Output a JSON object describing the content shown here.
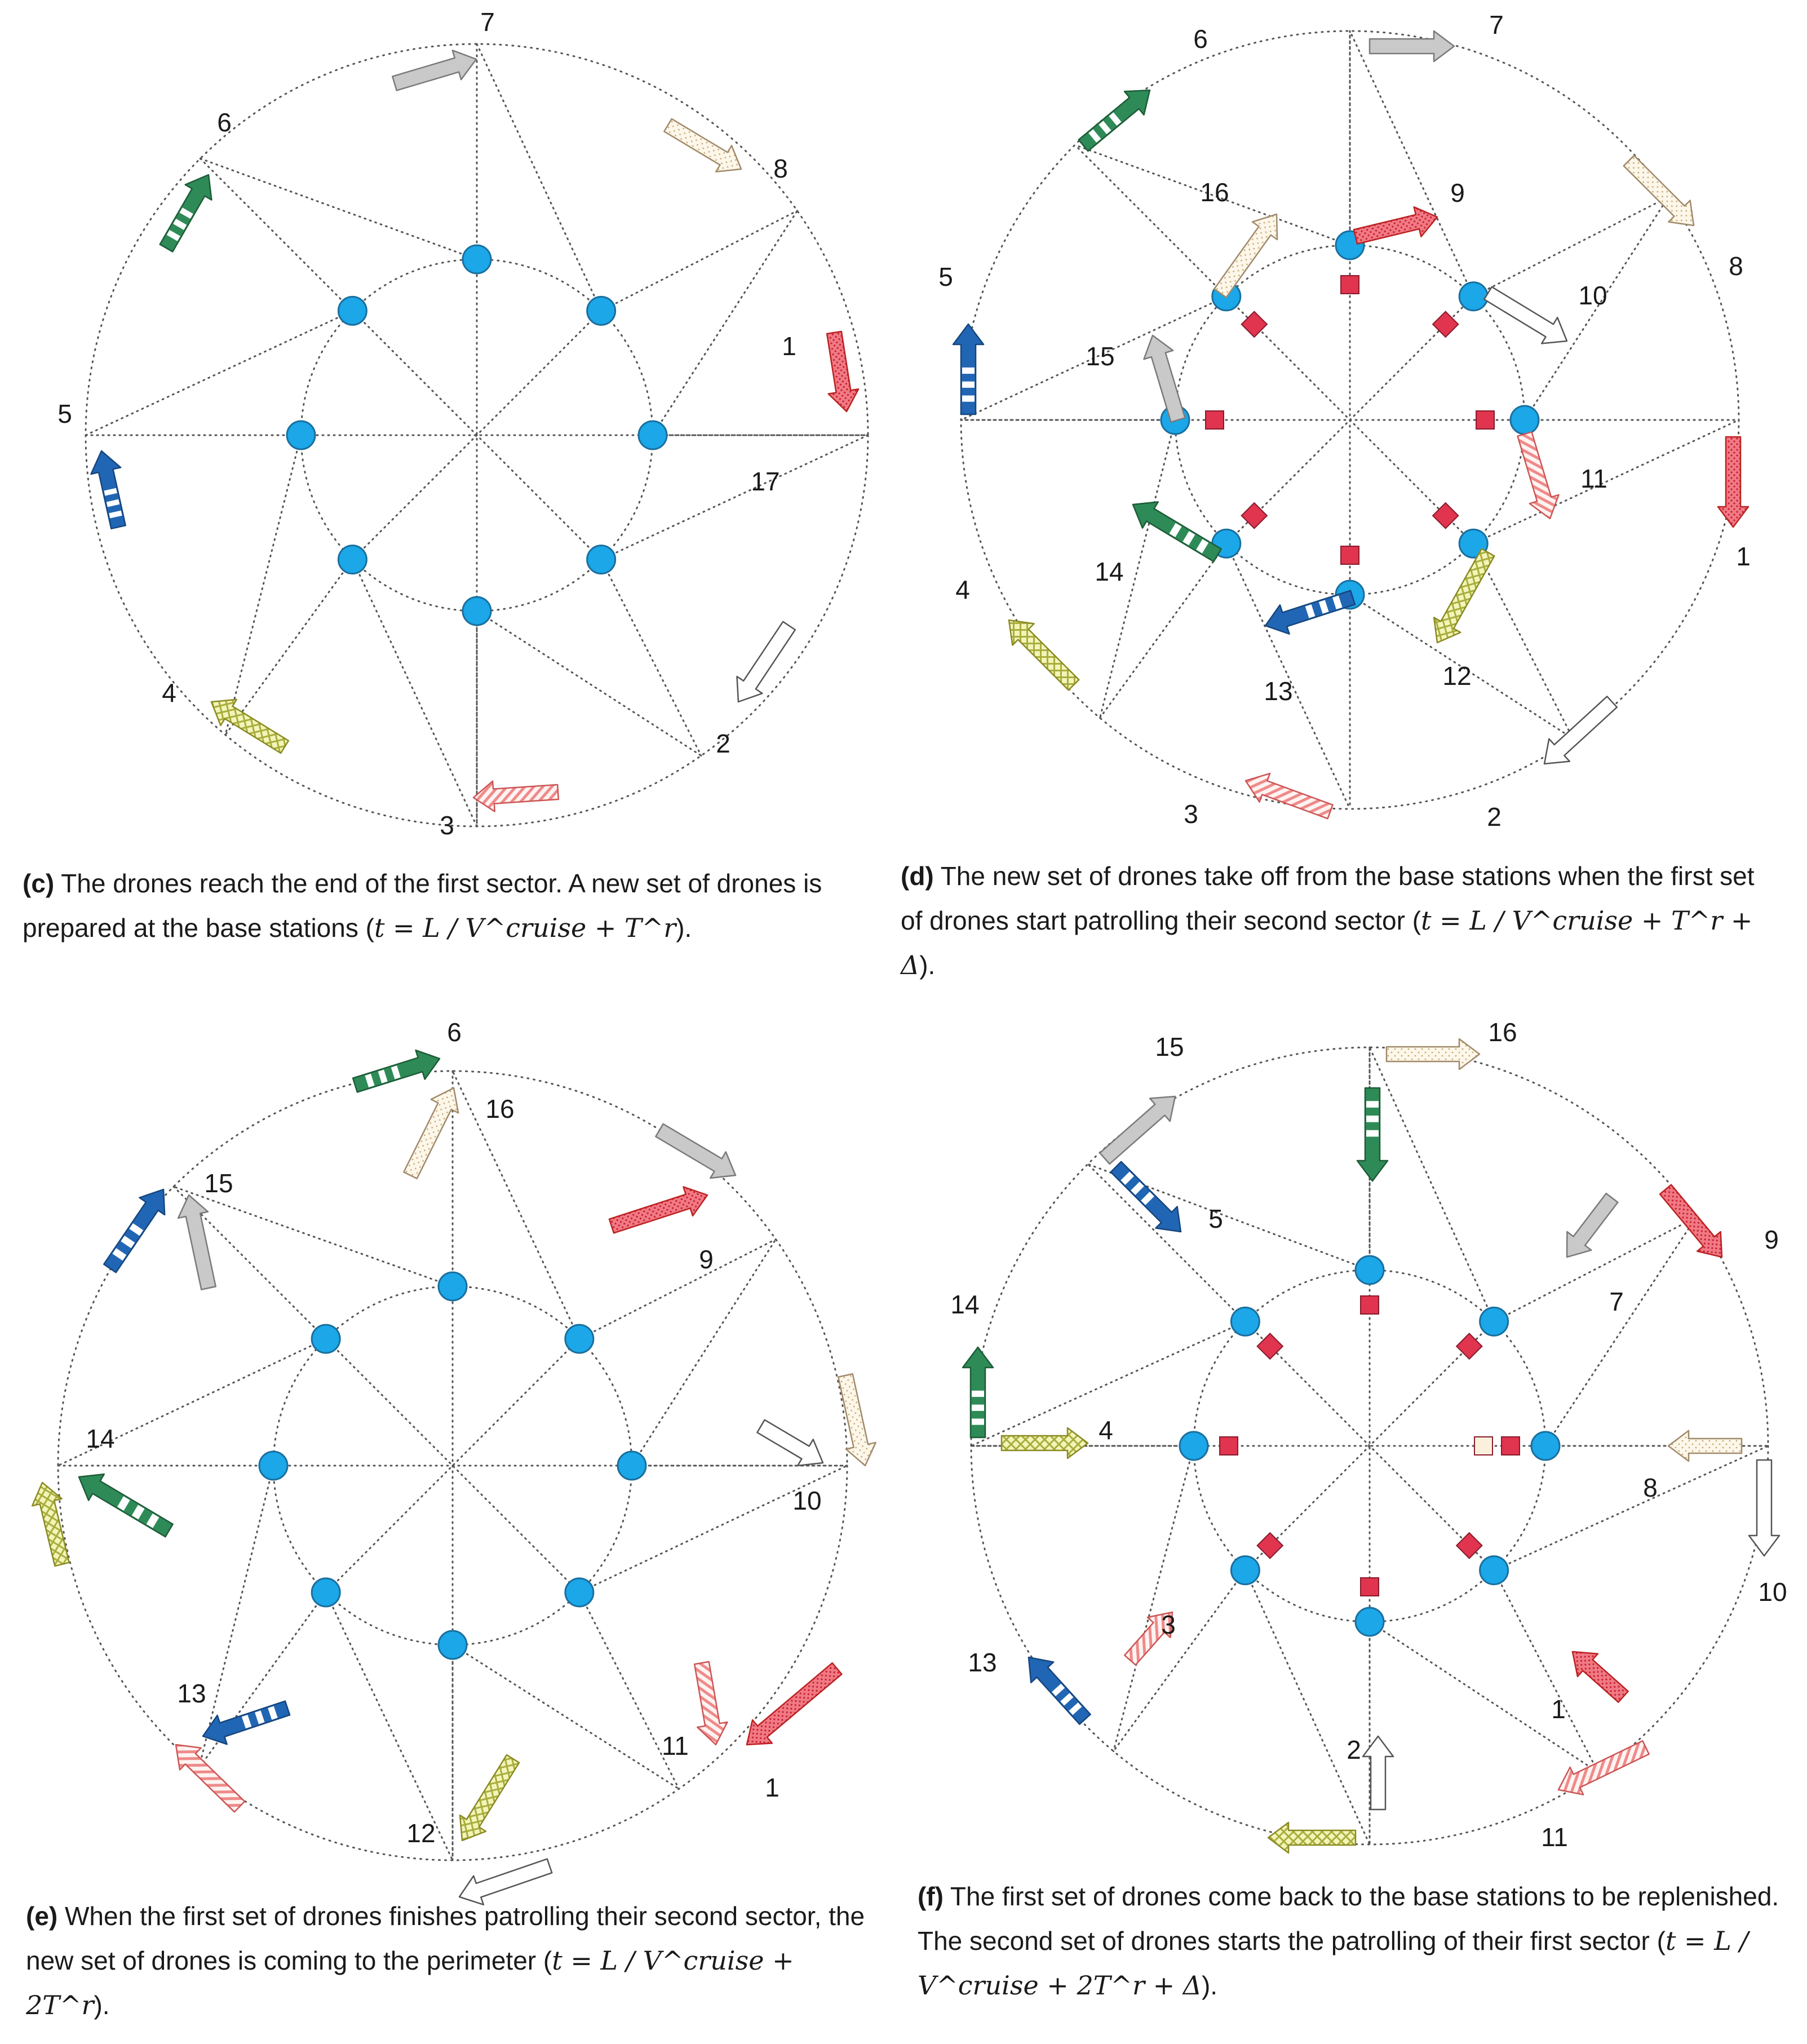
{
  "colors": {
    "gray": "#c9c9c9",
    "pink_dots": "#ffc8c8",
    "white": "#ffffff",
    "peach": "#fbe9e2",
    "yellow": "#e5e9a0",
    "blue": "#2166b4",
    "green": "#2e8b57",
    "cream": "#fbf4e6",
    "base": "#1ba7e8",
    "rest": "#e0344f",
    "light_sq": "#fbf0dc"
  },
  "panels": [
    {
      "id": "c",
      "caption": {
        "label": "(c)",
        "text": " The drones reach the end of the first sector. A new set of drones is prepared at the base stations (",
        "formula": "t = L / V^cruise + T^r",
        "close": ")."
      },
      "labels": [
        {
          "text": "1",
          "pos": "right-upper"
        },
        {
          "text": "2",
          "pos": "bottom-right"
        },
        {
          "text": "3",
          "pos": "bottom"
        },
        {
          "text": "4",
          "pos": "bottom-left"
        },
        {
          "text": "5",
          "pos": "left"
        },
        {
          "text": "6",
          "pos": "top-left"
        },
        {
          "text": "7",
          "pos": "top"
        },
        {
          "text": "8",
          "pos": "top-right"
        },
        {
          "text": "17",
          "pos": "inner-right"
        }
      ],
      "drones": [
        {
          "label": "1",
          "color": "pink dots",
          "direction": "down"
        },
        {
          "label": "2",
          "color": "white",
          "direction": "down-left"
        },
        {
          "label": "3",
          "color": "peach hatch",
          "direction": "left"
        },
        {
          "label": "4",
          "color": "yellow crosshatch",
          "direction": "up-left"
        },
        {
          "label": "5",
          "color": "blue stripes",
          "direction": "up"
        },
        {
          "label": "6",
          "color": "green stripes",
          "direction": "up-right"
        },
        {
          "label": "7",
          "color": "gray",
          "direction": "right"
        },
        {
          "label": "8",
          "color": "cream dots",
          "direction": "down-right"
        }
      ]
    },
    {
      "id": "d",
      "caption": {
        "label": "(d)",
        "text": " The new set of drones take off from the base stations when the first set of drones start patrolling their second sector (",
        "formula": "t = L / V^cruise + T^r + Δ",
        "close": ")."
      },
      "labels": [
        {
          "text": "1"
        },
        {
          "text": "2"
        },
        {
          "text": "3"
        },
        {
          "text": "4"
        },
        {
          "text": "5"
        },
        {
          "text": "6"
        },
        {
          "text": "7"
        },
        {
          "text": "8"
        },
        {
          "text": "9"
        },
        {
          "text": "10"
        },
        {
          "text": "11"
        },
        {
          "text": "12"
        },
        {
          "text": "13"
        },
        {
          "text": "14"
        },
        {
          "text": "15"
        },
        {
          "text": "16"
        }
      ]
    },
    {
      "id": "e",
      "caption": {
        "label": "(e)",
        "text": " When the first set of drones finishes patrolling their second sector, the new set of drones is coming to the perimeter (",
        "formula": "t = L / V^cruise + 2T^r",
        "close": ")."
      },
      "labels": [
        {
          "text": "1"
        },
        {
          "text": "6"
        },
        {
          "text": "9"
        },
        {
          "text": "10"
        },
        {
          "text": "11"
        },
        {
          "text": "12"
        },
        {
          "text": "13"
        },
        {
          "text": "14"
        },
        {
          "text": "15"
        },
        {
          "text": "16"
        }
      ]
    },
    {
      "id": "f",
      "caption": {
        "label": "(f)",
        "text": " The first set of drones come back to the base stations to be replenished. The second set of drones starts the patrolling of their first sector (",
        "formula": "t = L / V^cruise + 2T^r + Δ",
        "close": ")."
      },
      "labels": [
        {
          "text": "1"
        },
        {
          "text": "2"
        },
        {
          "text": "3"
        },
        {
          "text": "4"
        },
        {
          "text": "5"
        },
        {
          "text": "7"
        },
        {
          "text": "8"
        },
        {
          "text": "9"
        },
        {
          "text": "10"
        },
        {
          "text": "11"
        },
        {
          "text": "13"
        },
        {
          "text": "14"
        },
        {
          "text": "15"
        },
        {
          "text": "16"
        }
      ]
    }
  ]
}
